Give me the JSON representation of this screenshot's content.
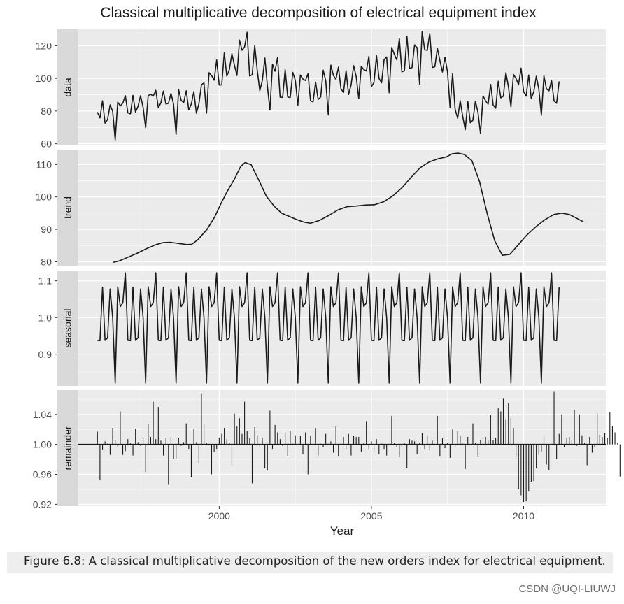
{
  "chart_data": {
    "type": "line",
    "title": "Classical multiplicative decomposition of electrical equipment index",
    "xlabel": "Year",
    "x_ticks": [
      2000,
      2005,
      2010
    ],
    "x_tick_labels": [
      "2000",
      "2005",
      "2010"
    ],
    "xlim": [
      1995.35,
      2012.7
    ],
    "start": [
      1996,
      1
    ],
    "frequency": 12,
    "panels": [
      {
        "name": "data",
        "label": "data",
        "kind": "line",
        "ylim": [
          59,
          130
        ],
        "ticks": [
          60,
          80,
          100,
          120
        ],
        "tick_labels": [
          "60",
          "80",
          "100",
          "120"
        ],
        "values": [
          79.3,
          75.8,
          86.3,
          72.6,
          74.9,
          83.8,
          79.8,
          62.4,
          85.5,
          83.1,
          84.9,
          89.4,
          78.9,
          78.3,
          89.6,
          79.4,
          82.9,
          89.4,
          82.3,
          69.8,
          89.5,
          90.2,
          89.2,
          92.7,
          82.1,
          85.0,
          92.2,
          84.3,
          84.8,
          90.8,
          84.3,
          65.7,
          93.1,
          86.6,
          85.2,
          92.4,
          80.7,
          84.3,
          91.9,
          78.7,
          84.4,
          96.1,
          97.2,
          78.7,
          103.5,
          101.7,
          98.9,
          111.3,
          95.9,
          96.0,
          115.7,
          101.3,
          105.4,
          115.1,
          108.1,
          101.8,
          123.4,
          117.2,
          119.3,
          128.2,
          101.4,
          102.3,
          120.1,
          104.9,
          92.5,
          98.7,
          112.5,
          95.1,
          80.6,
          108.7,
          104.4,
          112.9,
          88.5,
          88.4,
          105.3,
          88.6,
          88.3,
          103.6,
          98.8,
          83.6,
          102.0,
          99.6,
          98.7,
          102.8,
          86.2,
          85.6,
          97.7,
          87.1,
          88.6,
          105.0,
          98.5,
          77.6,
          108.1,
          101.9,
          99.4,
          106.9,
          93.6,
          91.4,
          104.8,
          90.1,
          96.1,
          107.8,
          101.1,
          87.7,
          107.4,
          105.4,
          104.5,
          113.5,
          94.9,
          97.5,
          113.9,
          100.0,
          97.3,
          111.5,
          113.1,
          91.2,
          118.9,
          114.9,
          111.4,
          124.4,
          104.0,
          104.6,
          125.8,
          106.2,
          106.6,
          120.5,
          118.8,
          96.5,
          128.6,
          117.5,
          117.2,
          127.5,
          106.7,
          107.1,
          118.4,
          110.9,
          103.9,
          113.0,
          103.9,
          82.3,
          102.9,
          81.1,
          75.6,
          86.3,
          76.7,
          68.6,
          85.8,
          72.8,
          74.4,
          86.1,
          79.3,
          66.2,
          89.3,
          86.3,
          84.2,
          96.3,
          83.7,
          81.7,
          98.2,
          88.1,
          89.1,
          103.4,
          95.0,
          82.6,
          102.4,
          99.9,
          96.2,
          106.3,
          91.8,
          89.2,
          102.0,
          87.8,
          91.7,
          101.3,
          93.4,
          77.4,
          101.6,
          93.6,
          92.4,
          98.7,
          86.2,
          84.8,
          98.1
        ]
      },
      {
        "name": "trend",
        "label": "trend",
        "kind": "line",
        "ylim": [
          78.8,
          114.6
        ],
        "ticks": [
          80,
          90,
          100,
          110
        ],
        "tick_labels": [
          "80",
          "90",
          "100",
          "110"
        ],
        "x": [
          1996.5,
          1996.7,
          1997.0,
          1997.3,
          1997.6,
          1997.9,
          1998.15,
          1998.4,
          1998.7,
          1998.95,
          1999.1,
          1999.3,
          1999.6,
          1999.85,
          2000.05,
          2000.25,
          2000.5,
          2000.7,
          2000.85,
          2001.05,
          2001.3,
          2001.55,
          2001.8,
          2002.05,
          2002.3,
          2002.55,
          2002.8,
          2003.0,
          2003.3,
          2003.6,
          2003.9,
          2004.2,
          2004.5,
          2004.8,
          2005.1,
          2005.4,
          2005.7,
          2006.0,
          2006.3,
          2006.6,
          2006.9,
          2007.2,
          2007.45,
          2007.65,
          2007.85,
          2008.05,
          2008.3,
          2008.55,
          2008.8,
          2009.05,
          2009.3,
          2009.55,
          2009.85,
          2010.1,
          2010.4,
          2010.7,
          2011.0,
          2011.25,
          2011.5,
          2011.75,
          2011.97
        ],
        "values": [
          79.8,
          80.2,
          81.4,
          82.6,
          84.0,
          85.2,
          85.9,
          86.0,
          85.6,
          85.3,
          85.4,
          86.8,
          90.0,
          93.8,
          97.8,
          101.5,
          105.5,
          109.3,
          110.6,
          109.9,
          105.2,
          100.2,
          97.2,
          95.0,
          94.0,
          93.0,
          92.2,
          91.9,
          92.8,
          94.3,
          96.0,
          97.0,
          97.2,
          97.5,
          97.6,
          98.5,
          100.3,
          102.8,
          106.0,
          109.0,
          110.8,
          111.8,
          112.3,
          113.3,
          113.5,
          113.1,
          111.2,
          104.8,
          95.0,
          86.5,
          82.0,
          82.3,
          85.5,
          88.2,
          90.8,
          93.0,
          94.6,
          95.0,
          94.6,
          93.4,
          92.3
        ]
      },
      {
        "name": "seasonal",
        "label": "seasonal",
        "kind": "line",
        "ylim": [
          0.814,
          1.128
        ],
        "ticks": [
          0.9,
          1.0,
          1.1
        ],
        "tick_labels": [
          "0.9",
          "1.0",
          "1.1"
        ],
        "pattern": [
          0.938,
          0.937,
          1.083,
          0.938,
          0.945,
          1.078,
          1.0,
          0.822,
          1.084,
          1.03,
          1.04,
          1.122
        ],
        "values": []
      },
      {
        "name": "remainder",
        "label": "remainder",
        "kind": "bar",
        "ylim": [
          0.9175,
          1.0725
        ],
        "ticks": [
          0.92,
          0.96,
          1.0,
          1.04
        ],
        "tick_labels": [
          "0.92",
          "0.96",
          "1.00",
          "1.04"
        ],
        "baseline": 1.0,
        "values": [
          1.017,
          0.952,
          0.993,
          1.004,
          1.001,
          0.986,
          1.022,
          1.006,
          0.996,
          1.044,
          0.986,
          0.991,
          1.007,
          1.002,
          0.985,
          1.021,
          1.003,
          0.998,
          1.008,
          0.963,
          1.027,
          1.01,
          1.057,
          1.007,
          1.05,
          1.005,
          0.985,
          1.009,
          0.946,
          1.01,
          0.981,
          0.98,
          1.009,
          0.998,
          1.003,
          1.028,
          0.994,
          0.956,
          1.021,
          1.003,
          0.974,
          1.068,
          1.026,
          1.002,
          0.999,
          0.96,
          0.99,
          0.994,
          1.009,
          1.014,
          1.022,
          1.007,
          1.002,
          0.972,
          1.041,
          1.024,
          1.035,
          1.014,
          1.057,
          1.018,
          1.008,
          0.948,
          1.023,
          1.012,
          0.996,
          1.009,
          0.968,
          0.965,
          1.045,
          0.994,
          1.026,
          1.016,
          1.007,
          0.998,
          1.016,
          0.984,
          1.018,
          1.001,
          1.012,
          1.0,
          1.011,
          0.987,
          1.016,
          0.96,
          1.011,
          1.002,
          1.022,
          0.985,
          1.001,
          0.996,
          1.014,
          1.001,
          1.004,
          0.989,
          1.024,
          0.984,
          1.001,
          1.01,
          0.994,
          1.014,
          0.985,
          1.011,
          1.01,
          1.01,
          0.99,
          1.002,
          1.031,
          0.994,
          1.004,
          0.991,
          1.007,
          0.987,
          1.001,
          0.994,
          0.985,
          1.0,
          1.038,
          1.002,
          0.997,
          0.983,
          0.996,
          1.002,
          0.968,
          1.007,
          1.005,
          1.004,
          0.987,
          1.002,
          1.015,
          0.994,
          1.011,
          0.992,
          1.005,
          0.999,
          1.038,
          0.984,
          1.008,
          0.995,
          1.002,
          0.982,
          1.02,
          0.997,
          1.018,
          1.012,
          1.001,
          0.967,
          1.01,
          0.999,
          1.028,
          1.002,
          0.983,
          1.006,
          1.008,
          1.01,
          1.005,
          1.039,
          1.006,
          1.009,
          1.048,
          1.044,
          1.061,
          1.033,
          1.055,
          1.035,
          1.022,
          0.983,
          0.94,
          0.932,
          0.923,
          0.924,
          0.937,
          0.95,
          0.951,
          0.968,
          0.986,
          0.99,
          1.011,
          0.973,
          0.966,
          1.0,
          1.07,
          0.98,
          1.014,
          1.04,
          0.996,
          1.008,
          1.01,
          1.006,
          1.046,
          0.998,
          1.04,
          1.012,
          1.002,
          0.972,
          1.01,
          0.989,
          0.996,
          1.041,
          1.013,
          1.01,
          1.015,
          1.009,
          1.043,
          1.024,
          1.016,
          1.002,
          0.957
        ]
      }
    ]
  },
  "caption": "Figure 6.8: A classical multiplicative decomposition of the new orders index for electrical equipment.",
  "watermark": "CSDN @UQI-LIUWJ",
  "colors": {
    "panel_bg": "#ebebeb",
    "strip_bg": "#d9d9d9",
    "grid_major": "#ffffff",
    "line": "#1a1a1a",
    "tick_text": "#4d4d4d"
  }
}
